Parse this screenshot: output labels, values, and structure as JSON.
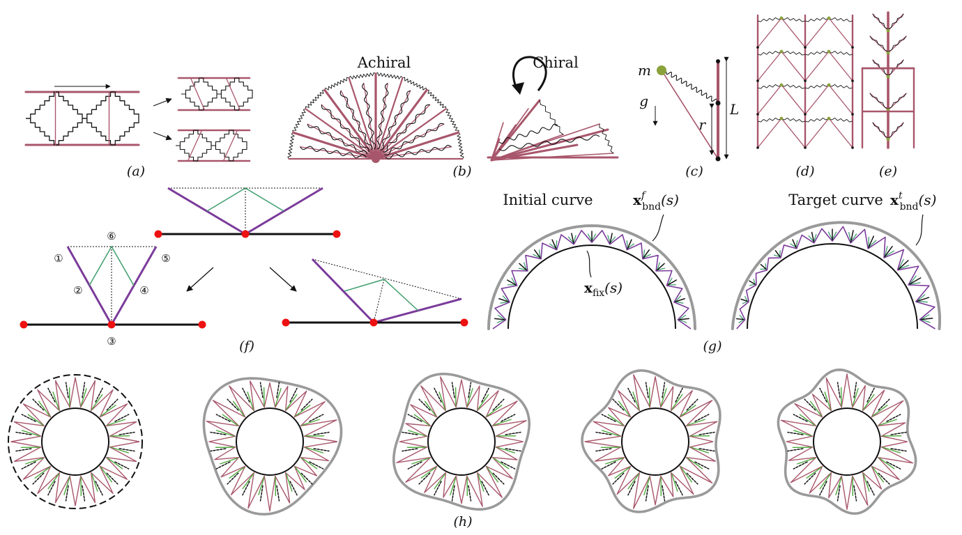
{
  "panels": {
    "a": "(a)",
    "b": "(b)",
    "c": "(c)",
    "d": "(d)",
    "e": "(e)",
    "f": "(f)",
    "g": "(g)",
    "h": "(h)"
  },
  "panel_b": {
    "left_title": "Achiral",
    "right_title": "Chiral"
  },
  "panel_c": {
    "mass": "m",
    "gravity": "g",
    "radius": "r",
    "length": "L"
  },
  "panel_f": {
    "node_labels": [
      "①",
      "②",
      "③",
      "④",
      "⑤",
      "⑥"
    ]
  },
  "panel_g": {
    "initial_title": "Initial curve",
    "target_title": "Target curve",
    "bnd_f": {
      "base": "x",
      "sub": "bnd",
      "sup": "f",
      "arg": "(s)"
    },
    "bnd_t": {
      "base": "x",
      "sub": "bnd",
      "sup": "t",
      "arg": "(s)"
    },
    "fix": {
      "base": "x",
      "sub": "fix",
      "arg": "(s)"
    }
  },
  "colors": {
    "bar": "#a8566b",
    "spring": "#111111",
    "purple": "#7b3b9a",
    "green": "#3f9e6e",
    "pivot": "#ee1111",
    "mass": "#8aa23a",
    "bright_green": "#4aa83a",
    "gray": "#9a9a9a"
  }
}
